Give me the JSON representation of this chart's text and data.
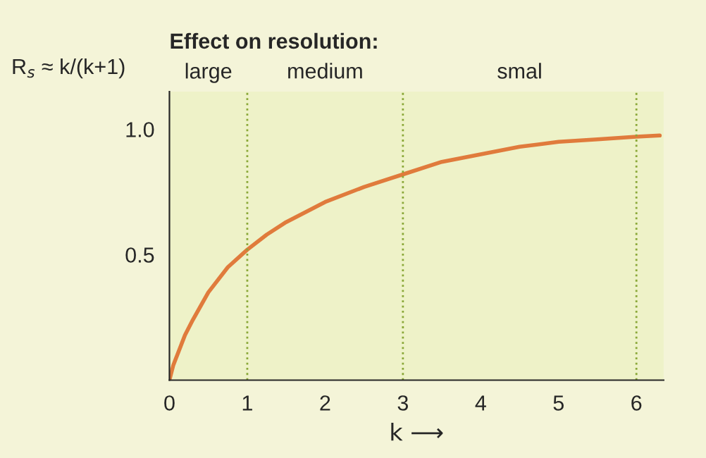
{
  "chart_data": {
    "type": "line",
    "title": "Effect on resolution:",
    "xlabel": "k ⟶",
    "ylabel": "R$_{s}$ ≈ k/(k+1)",
    "annotations": [
      "large",
      "medium",
      "smal"
    ],
    "x": [
      0,
      0.05,
      0.1,
      0.2,
      0.3,
      0.5,
      0.75,
      1,
      1.25,
      1.5,
      2,
      2.5,
      3,
      3.5,
      4,
      4.5,
      5,
      5.5,
      6,
      6.3
    ],
    "series": [
      {
        "color": "#e07b3c",
        "values": [
          0,
          0.06,
          0.1,
          0.18,
          0.24,
          0.35,
          0.45,
          0.52,
          0.58,
          0.63,
          0.71,
          0.77,
          0.82,
          0.87,
          0.9,
          0.93,
          0.95,
          0.96,
          0.97,
          0.975
        ]
      }
    ],
    "xlim": [
      0,
      6.35
    ],
    "ylim": [
      0,
      1.15
    ],
    "xticks": [
      0,
      1,
      2,
      3,
      4,
      5,
      6
    ],
    "yticks": [
      {
        "value": 0.5,
        "label": "0.5"
      },
      {
        "value": 1,
        "label": "1.0"
      }
    ],
    "ref_lines": [
      {
        "axis": "x",
        "value": 1,
        "color": "#8aa838",
        "line_style": "dotted"
      },
      {
        "axis": "x",
        "value": 3,
        "color": "#8aa838",
        "line_style": "dotted"
      },
      {
        "axis": "x",
        "value": 6,
        "color": "#8aa838",
        "line_style": "dotted"
      }
    ],
    "grid": false,
    "legend": false,
    "marker": "none",
    "line_style": "solid"
  }
}
